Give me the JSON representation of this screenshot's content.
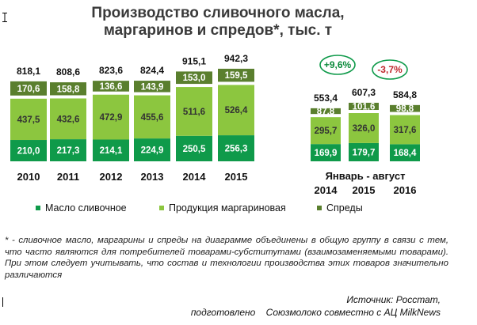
{
  "title_line1": "Производство сливочного масла,",
  "title_line2": "маргаринов и спредов*, тыс. т",
  "chart_data": {
    "type": "bar",
    "stacked": true,
    "categories": [
      "2010",
      "2011",
      "2012",
      "2013",
      "2014",
      "2015",
      "2014",
      "2015",
      "2016"
    ],
    "group_label": "Январь - август",
    "series": [
      {
        "name": "Масло сливочное",
        "color": "#0f9a4a",
        "values": [
          210.0,
          217.3,
          214.1,
          224.9,
          250.5,
          256.3,
          169.9,
          179.7,
          168.4
        ]
      },
      {
        "name": "Продукция маргариновая",
        "color": "#8cc63f",
        "values": [
          437.5,
          432.6,
          472.9,
          455.6,
          511.6,
          526.4,
          295.7,
          326.0,
          317.6
        ]
      },
      {
        "name": "Спреды",
        "color": "#5a7f2e",
        "values": [
          170.6,
          158.8,
          136.6,
          143.9,
          153.0,
          159.5,
          87.8,
          101.6,
          98.8
        ]
      }
    ],
    "value_labels": [
      [
        "210,0",
        "217,3",
        "214,1",
        "224,9",
        "250,5",
        "256,3",
        "169,9",
        "179,7",
        "168,4"
      ],
      [
        "437,5",
        "432,6",
        "472,9",
        "455,6",
        "511,6",
        "526,4",
        "295,7",
        "326,0",
        "317,6"
      ],
      [
        "170,6",
        "158,8",
        "136,6",
        "143,9",
        "153,0",
        "159,5",
        "87,8",
        "101,6",
        "98,8"
      ]
    ],
    "totals": [
      818.1,
      808.6,
      823.6,
      824.4,
      915.1,
      942.3,
      553.4,
      607.3,
      584.8
    ],
    "total_labels": [
      "818,1",
      "808,6",
      "823,6",
      "824,4",
      "915,1",
      "942,3",
      "553,4",
      "607,3",
      "584,8"
    ],
    "annotations": [
      {
        "text": "+9,6%",
        "color": "#0a8a3a"
      },
      {
        "text": "-3,7%",
        "color": "#c0282d"
      }
    ]
  },
  "legend": {
    "butter": "Масло сливочное",
    "margarine": "Продукция маргариновая",
    "spreads": "Спреды"
  },
  "footnote": "* - сливочное масло, маргарины и спреды на диаграмме объединены в общую группу в связи с тем, что часто являются для потребителей товарами-субститутами (взаимозаменяемыми товарами). При этом следует учитывать, что состав и технологии производства этих товаров значительно различаются",
  "source_line1": "Источник: Росстат,",
  "source_line2": "подготовлено    Союзмолоко совместно с АЦ MilkNews"
}
